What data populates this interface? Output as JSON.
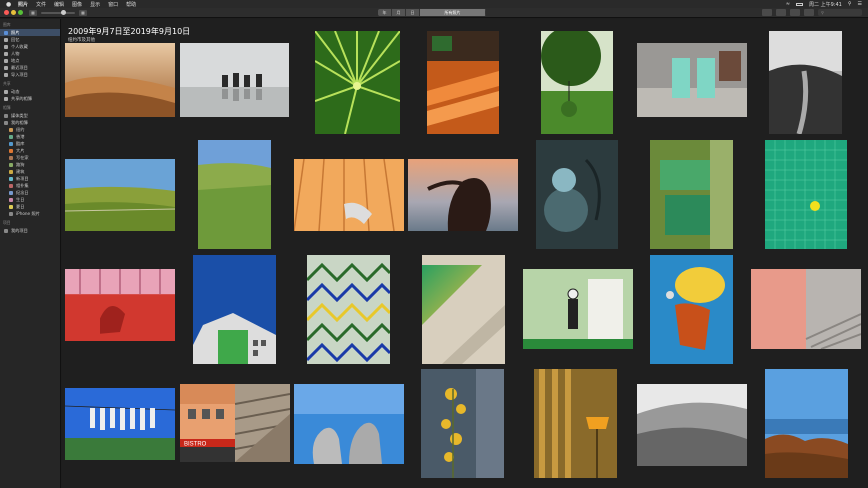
{
  "menubar": {
    "apple": "",
    "items": [
      "照片",
      "文件",
      "编辑",
      "图像",
      "显示",
      "窗口",
      "帮助"
    ],
    "clock": "周二 上午9:41"
  },
  "toolbar": {
    "segments": [
      "年",
      "月",
      "日",
      "所有照片"
    ],
    "active_segment": "所有照片"
  },
  "sidebar": {
    "sections": [
      {
        "title": "图库",
        "items": [
          {
            "label": "照片",
            "selected": true,
            "icon": "photos-icon",
            "color": "#5a8fd8"
          },
          {
            "label": "回忆",
            "icon": "memories-icon",
            "color": "#aaa"
          },
          {
            "label": "个人收藏",
            "icon": "heart-icon",
            "color": "#aaa"
          },
          {
            "label": "人物",
            "icon": "people-icon",
            "color": "#aaa"
          },
          {
            "label": "地点",
            "icon": "pin-icon",
            "color": "#aaa"
          },
          {
            "label": "最近项目",
            "icon": "clock-icon",
            "color": "#aaa"
          },
          {
            "label": "导入项目",
            "icon": "import-icon",
            "color": "#aaa"
          }
        ]
      },
      {
        "title": "共享",
        "items": [
          {
            "label": "动态",
            "icon": "cloud-icon",
            "color": "#aaa"
          },
          {
            "label": "共享的相簿",
            "icon": "shared-album-icon",
            "color": "#aaa"
          }
        ]
      },
      {
        "title": "相簿",
        "items": [
          {
            "label": "媒体类型",
            "icon": "folder-icon",
            "color": "#888"
          },
          {
            "label": "我的相簿",
            "icon": "folder-icon",
            "color": "#888"
          },
          {
            "label": "纽约",
            "child": true,
            "icon": "album-icon",
            "color": "#c95"
          },
          {
            "label": "香港",
            "child": true,
            "icon": "album-icon",
            "color": "#6a8"
          },
          {
            "label": "酷库",
            "child": true,
            "icon": "album-icon",
            "color": "#59c"
          },
          {
            "label": "大片",
            "child": true,
            "icon": "album-icon",
            "color": "#d73"
          },
          {
            "label": "写在家",
            "child": true,
            "icon": "album-icon",
            "color": "#a75"
          },
          {
            "label": "路狗",
            "child": true,
            "icon": "album-icon",
            "color": "#8a6"
          },
          {
            "label": "建筑",
            "child": true,
            "icon": "album-icon",
            "color": "#ca4"
          },
          {
            "label": "新项目",
            "child": true,
            "icon": "album-icon",
            "color": "#6bc"
          },
          {
            "label": "相扑集",
            "child": true,
            "icon": "album-icon",
            "color": "#b66"
          },
          {
            "label": "纪念日",
            "child": true,
            "icon": "album-icon",
            "color": "#79c"
          },
          {
            "label": "生日",
            "child": true,
            "icon": "album-icon",
            "color": "#c8a"
          },
          {
            "label": "夏日",
            "child": true,
            "icon": "album-icon",
            "color": "#dc5"
          },
          {
            "label": "iPhone 照片",
            "child": true,
            "icon": "album-icon",
            "color": "#888"
          }
        ]
      },
      {
        "title": "项目",
        "items": [
          {
            "label": "我的项目",
            "icon": "folder-icon",
            "color": "#888"
          }
        ]
      }
    ]
  },
  "main": {
    "title": "2009年9月7日至2019年9月10日",
    "subtitle": "纽约市及其他"
  },
  "photos": [
    {
      "name": "photo-desert-dunes",
      "kind": "desert"
    },
    {
      "name": "photo-camel-caravan",
      "kind": "camels"
    },
    {
      "name": "photo-palm-leaf",
      "kind": "palm"
    },
    {
      "name": "photo-orange-stairs",
      "kind": "stairs"
    },
    {
      "name": "photo-tree-green",
      "kind": "tree"
    },
    {
      "name": "photo-pool-chairs",
      "kind": "chairs"
    },
    {
      "name": "photo-bw-path",
      "kind": "bwpath"
    },
    {
      "name": "photo-green-hills",
      "kind": "hills"
    },
    {
      "name": "photo-tall-grass",
      "kind": "grass"
    },
    {
      "name": "photo-orange-ceiling",
      "kind": "ceiling"
    },
    {
      "name": "photo-woman-sunset",
      "kind": "woman"
    },
    {
      "name": "photo-car-mirror",
      "kind": "mirror"
    },
    {
      "name": "photo-green-pools",
      "kind": "pools"
    },
    {
      "name": "photo-tile-pool-ball",
      "kind": "tilepool"
    },
    {
      "name": "photo-pink-shadow-wall",
      "kind": "pinkwall"
    },
    {
      "name": "photo-building-sky",
      "kind": "building"
    },
    {
      "name": "photo-zigzag-fence",
      "kind": "zigzag"
    },
    {
      "name": "photo-gradient-pool",
      "kind": "gradpool"
    },
    {
      "name": "photo-chaplin-door",
      "kind": "chaplin"
    },
    {
      "name": "photo-yellow-hat",
      "kind": "yellowhat"
    },
    {
      "name": "photo-pink-stairs",
      "kind": "pinkstairs"
    },
    {
      "name": "photo-hanging-socks",
      "kind": "socks"
    },
    {
      "name": "photo-bistro-building",
      "kind": "bistro"
    },
    {
      "name": "photo-stone-stairs",
      "kind": "stonestairs"
    },
    {
      "name": "photo-horse-statues",
      "kind": "horses"
    },
    {
      "name": "photo-yellow-flowers",
      "kind": "flowers"
    },
    {
      "name": "photo-curtain-lamp",
      "kind": "curtain"
    },
    {
      "name": "photo-bw-hillside",
      "kind": "bwhill"
    },
    {
      "name": "photo-coast-rocks",
      "kind": "coast"
    }
  ]
}
